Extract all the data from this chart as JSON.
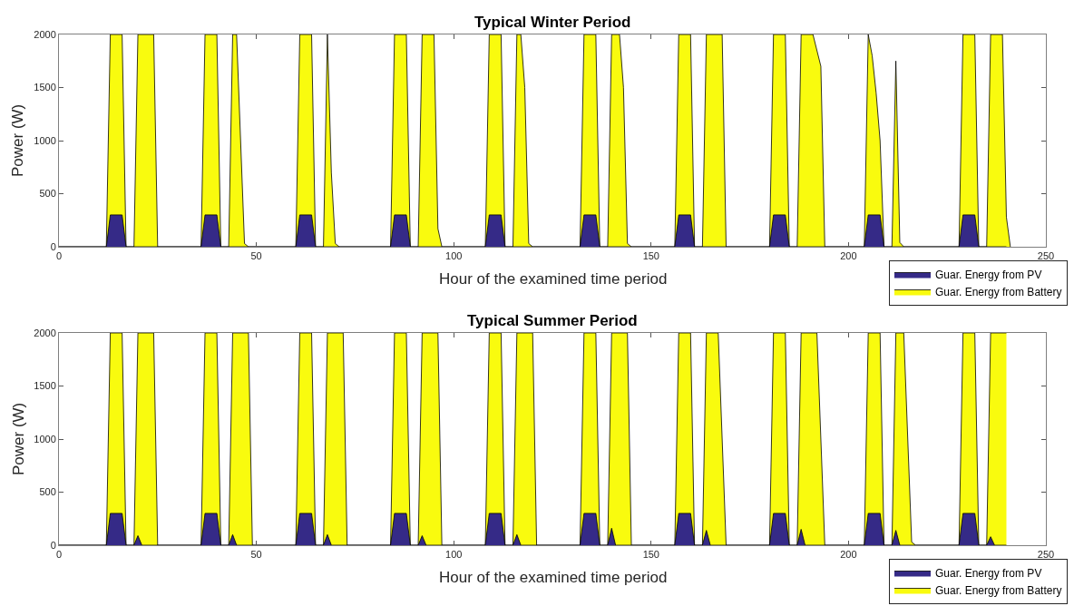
{
  "chart_data": [
    {
      "type": "area",
      "title": "Typical Winter Period",
      "xlabel": "Hour of the examined time period",
      "ylabel": "Power (W)",
      "xlim": [
        0,
        250
      ],
      "xticks": [
        0,
        50,
        100,
        150,
        200,
        250
      ],
      "ylim": [
        0,
        2000
      ],
      "yticks": [
        0,
        500,
        1000,
        1500,
        2000
      ],
      "legend": "bottom right",
      "line_style": "solid",
      "series": [
        {
          "name": "Guar. Energy from PV",
          "color": "#352a87",
          "x": [
            0,
            12,
            13,
            16,
            17,
            36,
            37,
            40,
            41,
            60,
            61,
            64,
            65,
            84,
            85,
            88,
            89,
            108,
            109,
            112,
            113,
            132,
            133,
            136,
            137,
            156,
            157,
            160,
            161,
            180,
            181,
            184,
            185,
            204,
            205,
            208,
            209,
            228,
            229,
            232,
            233,
            240
          ],
          "values": [
            0,
            0,
            300,
            300,
            0,
            0,
            300,
            300,
            0,
            0,
            300,
            300,
            0,
            0,
            300,
            300,
            0,
            0,
            300,
            300,
            0,
            0,
            300,
            300,
            0,
            0,
            300,
            300,
            0,
            0,
            300,
            300,
            0,
            0,
            300,
            300,
            0,
            0,
            300,
            300,
            0,
            0
          ]
        },
        {
          "name": "Guar. Energy from Battery",
          "color": "#f9fb0e",
          "x": [
            0,
            12,
            13,
            16,
            17,
            19,
            20,
            24,
            25,
            36,
            37,
            40,
            41,
            43,
            44,
            45,
            47,
            48,
            60,
            61,
            64,
            65,
            67,
            68,
            69,
            70,
            71,
            84,
            85,
            88,
            89,
            91,
            92,
            95,
            96,
            97,
            108,
            109,
            112,
            113,
            115,
            116,
            117,
            118,
            119,
            120,
            132,
            133,
            136,
            137,
            139,
            140,
            142,
            143,
            144,
            145,
            156,
            157,
            160,
            161,
            163,
            164,
            168,
            169,
            180,
            181,
            184,
            185,
            187,
            188,
            191,
            193,
            194,
            204,
            205,
            206,
            207,
            208,
            209,
            211,
            212,
            213,
            214,
            228,
            229,
            232,
            233,
            235,
            236,
            239,
            240,
            241
          ],
          "values": [
            0,
            0,
            2000,
            2000,
            0,
            0,
            2000,
            2000,
            0,
            0,
            2000,
            2000,
            0,
            0,
            2000,
            2000,
            30,
            0,
            0,
            2000,
            2000,
            0,
            0,
            2000,
            700,
            30,
            0,
            0,
            2000,
            2000,
            0,
            0,
            2000,
            2000,
            170,
            0,
            0,
            2000,
            2000,
            0,
            0,
            2000,
            2000,
            1500,
            30,
            0,
            0,
            2000,
            2000,
            0,
            0,
            2000,
            2000,
            1500,
            30,
            0,
            0,
            2000,
            2000,
            0,
            0,
            2000,
            2000,
            0,
            0,
            2000,
            2000,
            0,
            0,
            2000,
            2000,
            1700,
            0,
            0,
            2000,
            1800,
            1450,
            1000,
            0,
            0,
            1750,
            40,
            0,
            0,
            2000,
            2000,
            0,
            0,
            2000,
            2000,
            280,
            0
          ]
        }
      ]
    },
    {
      "type": "area",
      "title": "Typical Summer Period",
      "xlabel": "Hour of the examined time period",
      "ylabel": "Power (W)",
      "xlim": [
        0,
        250
      ],
      "xticks": [
        0,
        50,
        100,
        150,
        200,
        250
      ],
      "ylim": [
        0,
        2000
      ],
      "yticks": [
        0,
        500,
        1000,
        1500,
        2000
      ],
      "legend": "bottom right",
      "line_style": "solid",
      "series": [
        {
          "name": "Guar. Energy from PV",
          "color": "#352a87",
          "x": [
            0,
            12,
            13,
            16,
            17,
            19,
            20,
            21,
            36,
            37,
            40,
            41,
            43,
            44,
            45,
            60,
            61,
            64,
            65,
            67,
            68,
            69,
            84,
            85,
            88,
            89,
            91,
            92,
            93,
            108,
            109,
            112,
            113,
            115,
            116,
            117,
            132,
            133,
            136,
            137,
            139,
            140,
            141,
            156,
            157,
            160,
            161,
            163,
            164,
            165,
            180,
            181,
            184,
            185,
            187,
            188,
            189,
            204,
            205,
            208,
            209,
            211,
            212,
            213,
            228,
            229,
            232,
            233,
            235,
            236,
            237,
            240
          ],
          "values": [
            0,
            0,
            300,
            300,
            0,
            0,
            90,
            0,
            0,
            300,
            300,
            0,
            0,
            100,
            0,
            0,
            300,
            300,
            0,
            0,
            100,
            0,
            0,
            300,
            300,
            0,
            0,
            90,
            0,
            0,
            300,
            300,
            0,
            0,
            100,
            0,
            0,
            300,
            300,
            0,
            0,
            160,
            0,
            0,
            300,
            300,
            0,
            0,
            140,
            0,
            0,
            300,
            300,
            0,
            0,
            150,
            0,
            0,
            300,
            300,
            0,
            0,
            140,
            0,
            0,
            300,
            300,
            0,
            0,
            80,
            0,
            0
          ]
        },
        {
          "name": "Guar. Energy from Battery",
          "color": "#f9fb0e",
          "x": [
            0,
            12,
            13,
            16,
            17,
            19,
            20,
            24,
            25,
            36,
            37,
            40,
            41,
            43,
            44,
            48,
            49,
            60,
            61,
            64,
            65,
            67,
            68,
            72,
            73,
            84,
            85,
            88,
            89,
            91,
            92,
            96,
            97,
            108,
            109,
            112,
            113,
            115,
            116,
            120,
            121,
            132,
            133,
            136,
            137,
            139,
            140,
            144,
            145,
            156,
            157,
            160,
            161,
            163,
            164,
            167,
            169,
            180,
            181,
            184,
            185,
            187,
            188,
            192,
            194,
            204,
            205,
            208,
            209,
            211,
            212,
            214,
            216,
            217,
            228,
            229,
            232,
            233,
            235,
            236,
            240
          ],
          "values": [
            0,
            0,
            2000,
            2000,
            0,
            0,
            2000,
            2000,
            0,
            0,
            2000,
            2000,
            0,
            0,
            2000,
            2000,
            0,
            0,
            2000,
            2000,
            0,
            0,
            2000,
            2000,
            0,
            0,
            2000,
            2000,
            0,
            0,
            2000,
            2000,
            0,
            0,
            2000,
            2000,
            0,
            0,
            2000,
            2000,
            0,
            0,
            2000,
            2000,
            0,
            0,
            2000,
            2000,
            0,
            0,
            2000,
            2000,
            0,
            0,
            2000,
            2000,
            0,
            0,
            2000,
            2000,
            0,
            0,
            2000,
            2000,
            0,
            0,
            2000,
            2000,
            0,
            0,
            2000,
            2000,
            30,
            0,
            0,
            2000,
            2000,
            0,
            0,
            2000,
            2000
          ]
        }
      ]
    }
  ]
}
